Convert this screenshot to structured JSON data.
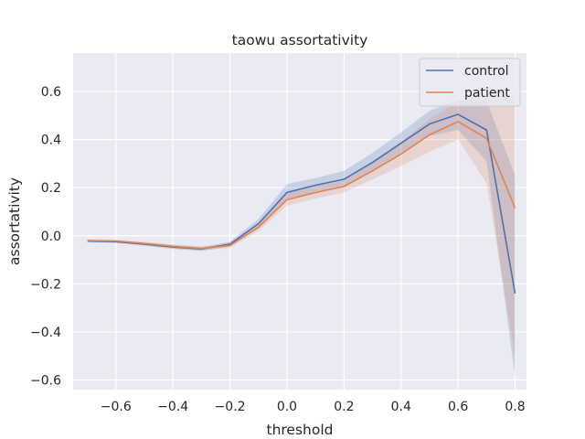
{
  "chart_data": {
    "type": "line",
    "title": "taowu assortativity",
    "xlabel": "threshold",
    "ylabel": "assortativity",
    "xlim": [
      -0.75,
      0.84
    ],
    "ylim": [
      -0.64,
      0.76
    ],
    "xticks": [
      -0.6,
      -0.4,
      -0.2,
      0.0,
      0.2,
      0.4,
      0.6,
      0.8
    ],
    "xtick_labels": [
      "−0.6",
      "−0.4",
      "−0.2",
      "0.0",
      "0.2",
      "0.4",
      "0.6",
      "0.8"
    ],
    "yticks": [
      -0.6,
      -0.4,
      -0.2,
      0.0,
      0.2,
      0.4,
      0.6
    ],
    "ytick_labels": [
      "−0.6",
      "−0.4",
      "−0.2",
      "0.0",
      "0.2",
      "0.4",
      "0.6"
    ],
    "grid": true,
    "legend_position": "top-right",
    "x": [
      -0.7,
      -0.6,
      -0.5,
      -0.4,
      -0.3,
      -0.2,
      -0.1,
      0.0,
      0.1,
      0.2,
      0.3,
      0.4,
      0.5,
      0.6,
      0.7,
      0.8
    ],
    "series": [
      {
        "name": "control",
        "color": "#4c72b0",
        "values": [
          -0.022,
          -0.025,
          -0.035,
          -0.047,
          -0.055,
          -0.035,
          0.05,
          0.18,
          0.21,
          0.235,
          0.305,
          0.385,
          0.465,
          0.505,
          0.44,
          -0.24
        ],
        "ci_lower": [
          -0.027,
          -0.03,
          -0.042,
          -0.055,
          -0.063,
          -0.045,
          0.035,
          0.15,
          0.185,
          0.205,
          0.27,
          0.345,
          0.415,
          0.44,
          0.31,
          -0.59
        ],
        "ci_upper": [
          -0.017,
          -0.02,
          -0.028,
          -0.04,
          -0.047,
          -0.025,
          0.07,
          0.215,
          0.24,
          0.27,
          0.345,
          0.43,
          0.52,
          0.565,
          0.56,
          0.25
        ]
      },
      {
        "name": "patient",
        "color": "#dd8452",
        "values": [
          -0.02,
          -0.022,
          -0.032,
          -0.044,
          -0.053,
          -0.04,
          0.035,
          0.15,
          0.18,
          0.205,
          0.27,
          0.34,
          0.42,
          0.475,
          0.405,
          0.115
        ],
        "ci_lower": [
          -0.025,
          -0.028,
          -0.039,
          -0.052,
          -0.062,
          -0.05,
          0.02,
          0.125,
          0.155,
          0.18,
          0.235,
          0.29,
          0.35,
          0.4,
          0.22,
          -0.5
        ],
        "ci_upper": [
          -0.015,
          -0.016,
          -0.025,
          -0.036,
          -0.044,
          -0.03,
          0.05,
          0.175,
          0.205,
          0.23,
          0.305,
          0.39,
          0.485,
          0.56,
          0.58,
          0.58
        ]
      }
    ]
  }
}
